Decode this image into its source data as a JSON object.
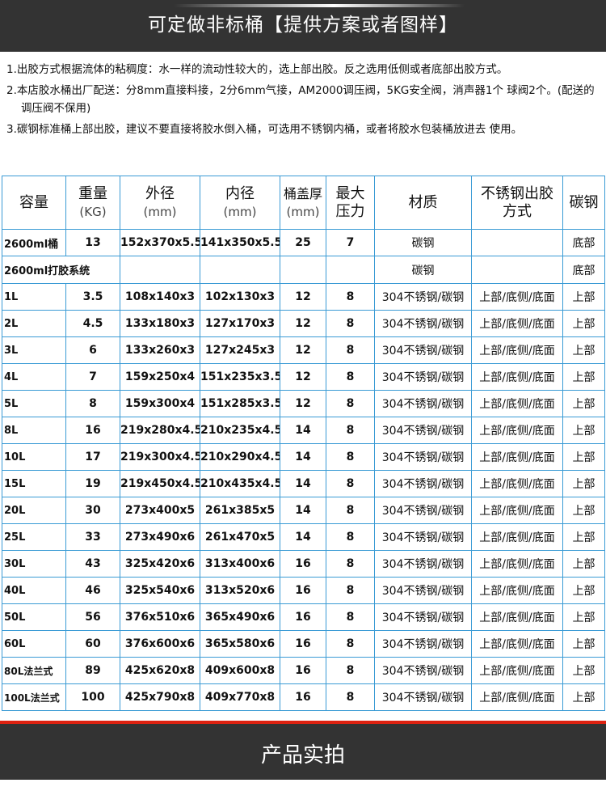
{
  "header": {
    "title": "可定做非标桶【提供方案或者图样】"
  },
  "notes": [
    "1.出胶方式根据流体的粘稠度：水一样的流动性较大的，选上部出胶。反之选用低侧或者底部出胶方式。",
    "2.本店胶水桶出厂配送：分8mm直接料接，2分6mm气接，AM2000调压阀，5KG安全阀，消声器1个 球阀2个。(配送的调压阀不保用)",
    "3.碳钢标准桶上部出胶，建议不要直接将胶水倒入桶，可选用不锈钢内桶，或者将胶水包装桶放进去 使用。"
  ],
  "table": {
    "headers": [
      {
        "main": "容量",
        "sub": ""
      },
      {
        "main": "重量",
        "sub": "(KG)"
      },
      {
        "main": "外径",
        "sub": "(mm)"
      },
      {
        "main": "内径",
        "sub": "(mm)"
      },
      {
        "main": "桶盖厚",
        "sub": "(mm)"
      },
      {
        "main": "最大压力",
        "sub": ""
      },
      {
        "main": "材质",
        "sub": ""
      },
      {
        "main": "不锈钢出胶方式",
        "sub": ""
      },
      {
        "main": "碳钢",
        "sub": ""
      }
    ],
    "rows": [
      [
        "2600ml桶",
        "13",
        "152x370x5.5",
        "141x350x5.5",
        "25",
        "7",
        "碳钢",
        "",
        "底部"
      ],
      [
        "2600ml打胶系统",
        "",
        "",
        "",
        "",
        "",
        "碳钢",
        "",
        "底部"
      ],
      [
        "1L",
        "3.5",
        "108x140x3",
        "102x130x3",
        "12",
        "8",
        "304不锈钢/碳钢",
        "上部/底侧/底面",
        "上部"
      ],
      [
        "2L",
        "4.5",
        "133x180x3",
        "127x170x3",
        "12",
        "8",
        "304不锈钢/碳钢",
        "上部/底侧/底面",
        "上部"
      ],
      [
        "3L",
        "6",
        "133x260x3",
        "127x245x3",
        "12",
        "8",
        "304不锈钢/碳钢",
        "上部/底侧/底面",
        "上部"
      ],
      [
        "4L",
        "7",
        "159x250x4",
        "151x235x3.5",
        "12",
        "8",
        "304不锈钢/碳钢",
        "上部/底侧/底面",
        "上部"
      ],
      [
        "5L",
        "8",
        "159x300x4",
        "151x285x3.5",
        "12",
        "8",
        "304不锈钢/碳钢",
        "上部/底侧/底面",
        "上部"
      ],
      [
        "8L",
        "16",
        "219x280x4.5",
        "210x235x4.5",
        "14",
        "8",
        "304不锈钢/碳钢",
        "上部/底侧/底面",
        "上部"
      ],
      [
        "10L",
        "17",
        "219x300x4.5",
        "210x290x4.5",
        "14",
        "8",
        "304不锈钢/碳钢",
        "上部/底侧/底面",
        "上部"
      ],
      [
        "15L",
        "19",
        "219x450x4.5",
        "210x435x4.5",
        "14",
        "8",
        "304不锈钢/碳钢",
        "上部/底侧/底面",
        "上部"
      ],
      [
        "20L",
        "30",
        "273x400x5",
        "261x385x5",
        "14",
        "8",
        "304不锈钢/碳钢",
        "上部/底侧/底面",
        "上部"
      ],
      [
        "25L",
        "33",
        "273x490x6",
        "261x470x5",
        "14",
        "8",
        "304不锈钢/碳钢",
        "上部/底侧/底面",
        "上部"
      ],
      [
        "30L",
        "43",
        "325x420x6",
        "313x400x6",
        "16",
        "8",
        "304不锈钢/碳钢",
        "上部/底侧/底面",
        "上部"
      ],
      [
        "40L",
        "46",
        "325x540x6",
        "313x520x6",
        "16",
        "8",
        "304不锈钢/碳钢",
        "上部/底侧/底面",
        "上部"
      ],
      [
        "50L",
        "56",
        "376x510x6",
        "365x490x6",
        "16",
        "8",
        "304不锈钢/碳钢",
        "上部/底侧/底面",
        "上部"
      ],
      [
        "60L",
        "60",
        "376x600x6",
        "365x580x6",
        "16",
        "8",
        "304不锈钢/碳钢",
        "上部/底侧/底面",
        "上部"
      ],
      [
        "80L法兰式",
        "89",
        "425x620x8",
        "409x600x8",
        "16",
        "8",
        "304不锈钢/碳钢",
        "上部/底侧/底面",
        "上部"
      ],
      [
        "100L法兰式",
        "100",
        "425x790x8",
        "409x770x8",
        "16",
        "8",
        "304不锈钢/碳钢",
        "上部/底侧/底面",
        "上部"
      ]
    ]
  },
  "footer": {
    "title": "产品实拍"
  }
}
